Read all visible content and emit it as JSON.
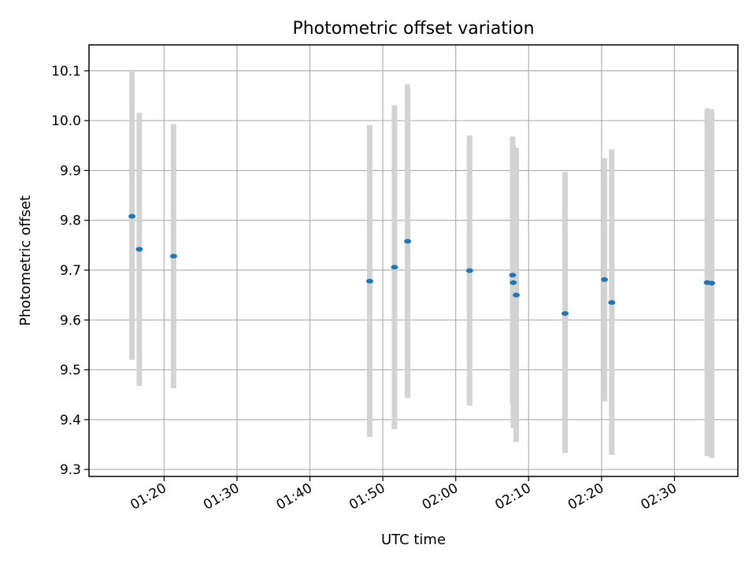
{
  "chart_data": {
    "type": "scatter",
    "title": "Photometric offset variation",
    "xlabel": "UTC time",
    "ylabel": "Photometric offset",
    "x_type": "time",
    "xlim": [
      "01:09:42",
      "02:38:42"
    ],
    "ylim": [
      9.286,
      10.152
    ],
    "xticks": [
      "01:20",
      "01:30",
      "01:40",
      "01:50",
      "02:00",
      "02:10",
      "02:20",
      "02:30"
    ],
    "yticks": [
      "9.3",
      "9.4",
      "9.5",
      "9.6",
      "9.7",
      "9.8",
      "9.9",
      "10.0",
      "10.1"
    ],
    "grid": true,
    "marker_color": "#1f77b4",
    "errorbar_color": "#d3d3d3",
    "points": [
      {
        "x": "01:15:36",
        "y": 9.808,
        "yerr_low": 9.52,
        "yerr_high": 10.098
      },
      {
        "x": "01:16:36",
        "y": 9.742,
        "yerr_low": 9.468,
        "yerr_high": 10.016
      },
      {
        "x": "01:21:18",
        "y": 9.728,
        "yerr_low": 9.463,
        "yerr_high": 9.993
      },
      {
        "x": "01:48:12",
        "y": 9.678,
        "yerr_low": 9.365,
        "yerr_high": 9.991
      },
      {
        "x": "01:51:36",
        "y": 9.706,
        "yerr_low": 9.381,
        "yerr_high": 10.031
      },
      {
        "x": "01:53:24",
        "y": 9.758,
        "yerr_low": 9.443,
        "yerr_high": 10.073
      },
      {
        "x": "02:01:54",
        "y": 9.699,
        "yerr_low": 9.428,
        "yerr_high": 9.97
      },
      {
        "x": "02:07:48",
        "y": 9.69,
        "yerr_low": 9.43,
        "yerr_high": 9.968
      },
      {
        "x": "02:07:54",
        "y": 9.675,
        "yerr_low": 9.383,
        "yerr_high": 9.95
      },
      {
        "x": "02:08:18",
        "y": 9.65,
        "yerr_low": 9.355,
        "yerr_high": 9.945
      },
      {
        "x": "02:15:00",
        "y": 9.613,
        "yerr_low": 9.333,
        "yerr_high": 9.897
      },
      {
        "x": "02:20:24",
        "y": 9.681,
        "yerr_low": 9.437,
        "yerr_high": 9.925
      },
      {
        "x": "02:21:24",
        "y": 9.635,
        "yerr_low": 9.329,
        "yerr_high": 9.942
      },
      {
        "x": "02:34:30",
        "y": 9.675,
        "yerr_low": 9.327,
        "yerr_high": 10.025
      },
      {
        "x": "02:35:06",
        "y": 9.674,
        "yerr_low": 9.323,
        "yerr_high": 10.023
      }
    ]
  }
}
